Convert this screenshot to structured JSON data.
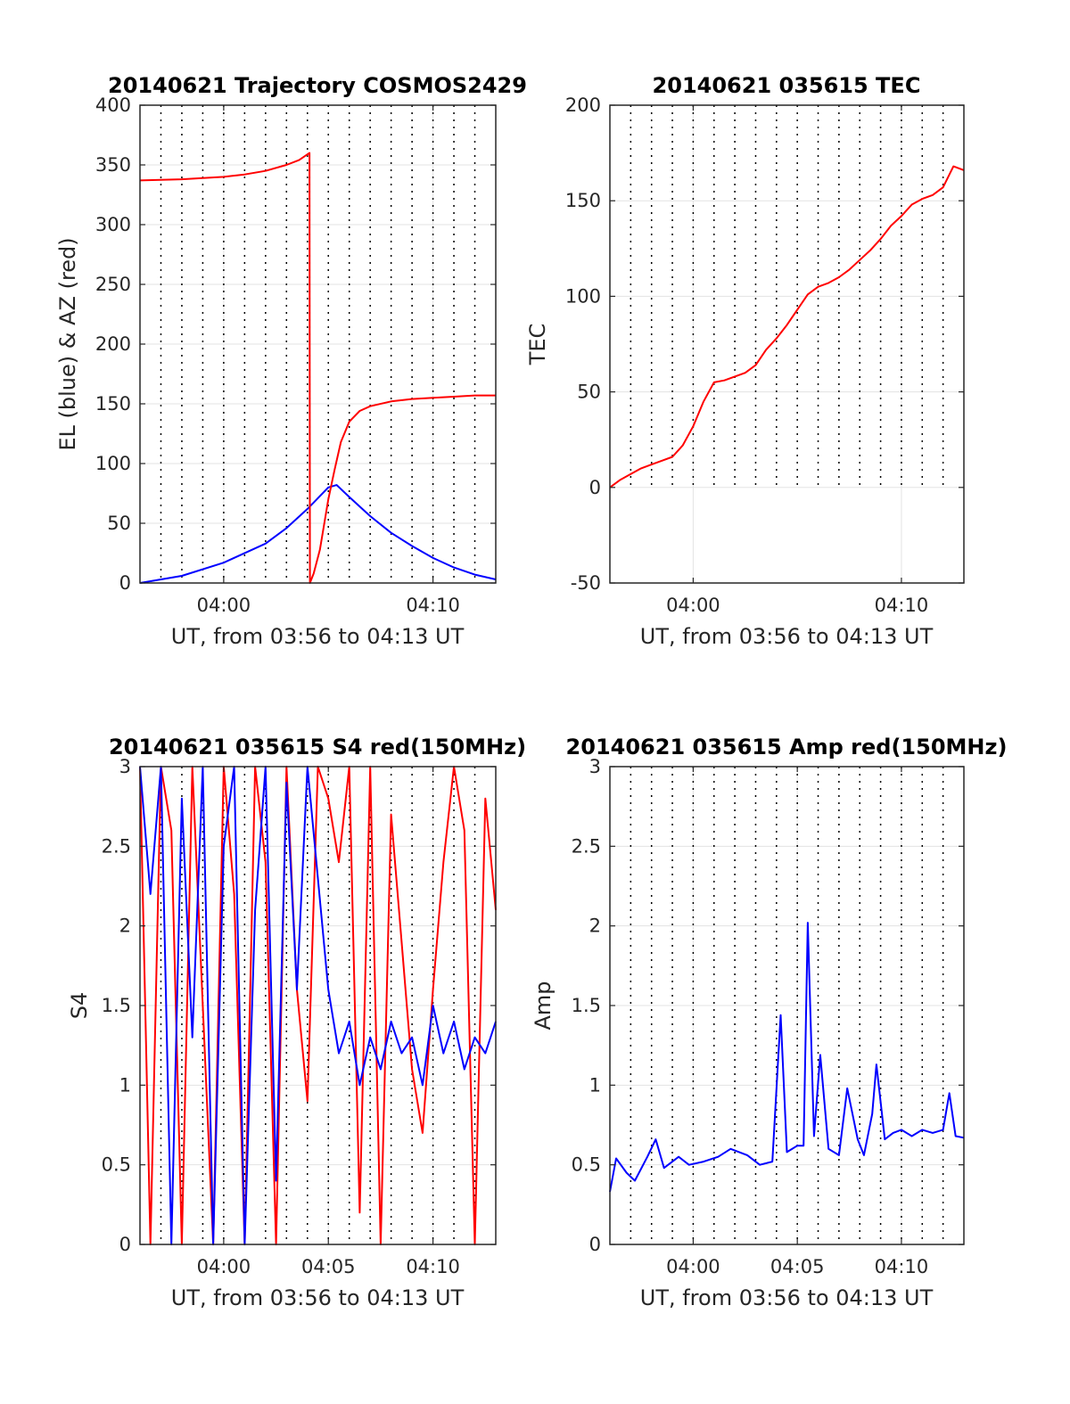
{
  "chart_data": [
    {
      "type": "line",
      "title": "20140621 Trajectory COSMOS2429",
      "xlabel": "UT, from 03:56 to 04:13 UT",
      "ylabel": "EL (blue) & AZ (red)",
      "xlim_minutes": [
        0,
        17
      ],
      "xticks": [
        {
          "label": "04:00",
          "minute": 4
        },
        {
          "label": "04:10",
          "minute": 14
        }
      ],
      "ylim": [
        0,
        400
      ],
      "yticks": [
        0,
        50,
        100,
        150,
        200,
        250,
        300,
        350,
        400
      ],
      "grid": "x dotted every 1 min; y solid light",
      "series": [
        {
          "color": "#0000ff",
          "points": [
            [
              0,
              0
            ],
            [
              2,
              6
            ],
            [
              4,
              17
            ],
            [
              6,
              33
            ],
            [
              7,
              46
            ],
            [
              8,
              62
            ],
            [
              9,
              80
            ],
            [
              9.4,
              82
            ],
            [
              10,
              72
            ],
            [
              11,
              56
            ],
            [
              12,
              42
            ],
            [
              13,
              31
            ],
            [
              14,
              21
            ],
            [
              15,
              13
            ],
            [
              16,
              7
            ],
            [
              17,
              3
            ]
          ]
        },
        {
          "color": "#ff0000",
          "points": [
            [
              0,
              337
            ],
            [
              2,
              338
            ],
            [
              4,
              340
            ],
            [
              5,
              342
            ],
            [
              6,
              345
            ],
            [
              7,
              350
            ],
            [
              7.6,
              354
            ],
            [
              8.1,
              360
            ],
            [
              8.12,
              0
            ],
            [
              8.3,
              8
            ],
            [
              8.6,
              28
            ],
            [
              9,
              70
            ],
            [
              9.3,
              95
            ],
            [
              9.6,
              118
            ],
            [
              10,
              135
            ],
            [
              10.5,
              144
            ],
            [
              11,
              148
            ],
            [
              12,
              152
            ],
            [
              13,
              154
            ],
            [
              14,
              155
            ],
            [
              15,
              156
            ],
            [
              16,
              157
            ],
            [
              17,
              157
            ]
          ]
        }
      ]
    },
    {
      "type": "line",
      "title": "20140621 035615 TEC",
      "xlabel": "UT, from 03:56 to 04:13 UT",
      "ylabel": "TEC",
      "xlim_minutes": [
        0,
        17
      ],
      "xticks": [
        {
          "label": "04:00",
          "minute": 4
        },
        {
          "label": "04:10",
          "minute": 14
        }
      ],
      "ylim": [
        -50,
        200
      ],
      "yticks": [
        -50,
        0,
        50,
        100,
        150,
        200
      ],
      "grid": "x dotted every 1 min over data; y solid light",
      "series": [
        {
          "color": "#ff0000",
          "points": [
            [
              0,
              0
            ],
            [
              0.5,
              4
            ],
            [
              1,
              7
            ],
            [
              1.5,
              10
            ],
            [
              2,
              12
            ],
            [
              2.5,
              14
            ],
            [
              3,
              16
            ],
            [
              3.5,
              22
            ],
            [
              4,
              32
            ],
            [
              4.5,
              45
            ],
            [
              5,
              55
            ],
            [
              5.5,
              56
            ],
            [
              6,
              58
            ],
            [
              6.5,
              60
            ],
            [
              7,
              64
            ],
            [
              7.5,
              72
            ],
            [
              8,
              78
            ],
            [
              8.5,
              85
            ],
            [
              9,
              93
            ],
            [
              9.5,
              101
            ],
            [
              10,
              105
            ],
            [
              10.5,
              107
            ],
            [
              11,
              110
            ],
            [
              11.5,
              114
            ],
            [
              12,
              119
            ],
            [
              12.5,
              124
            ],
            [
              13,
              130
            ],
            [
              13.5,
              137
            ],
            [
              14,
              142
            ],
            [
              14.5,
              148
            ],
            [
              15,
              151
            ],
            [
              15.5,
              153
            ],
            [
              16,
              157
            ],
            [
              16.5,
              168
            ],
            [
              17,
              166
            ]
          ]
        }
      ]
    },
    {
      "type": "line",
      "title": "20140621 035615 S4 red(150MHz)",
      "xlabel": "UT, from 03:56 to 04:13 UT",
      "ylabel": "S4",
      "xlim_minutes": [
        0,
        17
      ],
      "xticks": [
        {
          "label": "04:00",
          "minute": 4
        },
        {
          "label": "04:05",
          "minute": 9
        },
        {
          "label": "04:10",
          "minute": 14
        }
      ],
      "ylim": [
        0,
        3
      ],
      "yticks": [
        "0",
        "0.5",
        "1",
        "1.5",
        "2",
        "2.5",
        "3"
      ],
      "grid": "x dotted every 1 min; y solid light",
      "series": [
        {
          "color": "#ff0000",
          "points": [
            [
              0,
              3
            ],
            [
              0.5,
              0
            ],
            [
              1,
              3
            ],
            [
              1.5,
              2.6
            ],
            [
              2,
              0
            ],
            [
              2.5,
              3
            ],
            [
              3,
              1.5
            ],
            [
              3.5,
              0
            ],
            [
              4,
              3
            ],
            [
              4.5,
              2.2
            ],
            [
              5,
              0
            ],
            [
              5.5,
              3
            ],
            [
              6,
              2.4
            ],
            [
              6.5,
              0
            ],
            [
              7,
              3
            ],
            [
              7.5,
              1.6
            ],
            [
              8,
              0.9
            ],
            [
              8.5,
              3
            ],
            [
              9,
              2.8
            ],
            [
              9.5,
              2.4
            ],
            [
              10,
              3
            ],
            [
              10.5,
              0.2
            ],
            [
              11,
              3
            ],
            [
              11.5,
              0
            ],
            [
              12,
              2.7
            ],
            [
              12.5,
              1.9
            ],
            [
              13,
              1.1
            ],
            [
              13.5,
              0.7
            ],
            [
              14,
              1.6
            ],
            [
              14.5,
              2.4
            ],
            [
              15,
              3
            ],
            [
              15.5,
              2.6
            ],
            [
              16,
              0
            ],
            [
              16.5,
              2.8
            ],
            [
              17,
              2.1
            ]
          ]
        },
        {
          "color": "#0000ff",
          "points": [
            [
              0,
              3
            ],
            [
              0.5,
              2.2
            ],
            [
              1,
              3
            ],
            [
              1.5,
              0
            ],
            [
              2,
              2.8
            ],
            [
              2.5,
              1.3
            ],
            [
              3,
              3
            ],
            [
              3.5,
              0
            ],
            [
              4,
              2.5
            ],
            [
              4.5,
              3
            ],
            [
              5,
              0
            ],
            [
              5.5,
              2.1
            ],
            [
              6,
              3
            ],
            [
              6.5,
              0.4
            ],
            [
              7,
              2.9
            ],
            [
              7.5,
              1.6
            ],
            [
              8,
              3
            ],
            [
              8.5,
              2.3
            ],
            [
              9,
              1.6
            ],
            [
              9.5,
              1.2
            ],
            [
              10,
              1.4
            ],
            [
              10.5,
              1
            ],
            [
              11,
              1.3
            ],
            [
              11.5,
              1.1
            ],
            [
              12,
              1.4
            ],
            [
              12.5,
              1.2
            ],
            [
              13,
              1.3
            ],
            [
              13.5,
              1
            ],
            [
              14,
              1.5
            ],
            [
              14.5,
              1.2
            ],
            [
              15,
              1.4
            ],
            [
              15.5,
              1.1
            ],
            [
              16,
              1.3
            ],
            [
              16.5,
              1.2
            ],
            [
              17,
              1.4
            ]
          ]
        }
      ]
    },
    {
      "type": "line",
      "title": "20140621 035615 Amp red(150MHz)",
      "xlabel": "UT, from 03:56 to 04:13 UT",
      "ylabel": "Amp",
      "xlim_minutes": [
        0,
        17
      ],
      "xticks": [
        {
          "label": "04:00",
          "minute": 4
        },
        {
          "label": "04:05",
          "minute": 9
        },
        {
          "label": "04:10",
          "minute": 14
        }
      ],
      "ylim": [
        0,
        3
      ],
      "yticks": [
        "0",
        "0.5",
        "1",
        "1.5",
        "2",
        "2.5",
        "3"
      ],
      "grid": "x dotted every 1 min; y solid light",
      "series": [
        {
          "color": "#0000ff",
          "points": [
            [
              0,
              0.33
            ],
            [
              0.3,
              0.54
            ],
            [
              0.8,
              0.45
            ],
            [
              1.2,
              0.4
            ],
            [
              1.8,
              0.55
            ],
            [
              2.2,
              0.66
            ],
            [
              2.6,
              0.48
            ],
            [
              3.3,
              0.55
            ],
            [
              3.8,
              0.5
            ],
            [
              4.5,
              0.52
            ],
            [
              5.2,
              0.55
            ],
            [
              5.8,
              0.6
            ],
            [
              6.6,
              0.56
            ],
            [
              7.2,
              0.5
            ],
            [
              7.8,
              0.52
            ],
            [
              8.2,
              1.44
            ],
            [
              8.5,
              0.58
            ],
            [
              9,
              0.62
            ],
            [
              9.3,
              0.62
            ],
            [
              9.5,
              2.02
            ],
            [
              9.8,
              0.68
            ],
            [
              10.1,
              1.19
            ],
            [
              10.5,
              0.6
            ],
            [
              11,
              0.56
            ],
            [
              11.4,
              0.98
            ],
            [
              11.9,
              0.66
            ],
            [
              12.2,
              0.56
            ],
            [
              12.6,
              0.82
            ],
            [
              12.8,
              1.13
            ],
            [
              13.2,
              0.66
            ],
            [
              13.6,
              0.7
            ],
            [
              14,
              0.72
            ],
            [
              14.5,
              0.68
            ],
            [
              15,
              0.72
            ],
            [
              15.5,
              0.7
            ],
            [
              16,
              0.72
            ],
            [
              16.3,
              0.95
            ],
            [
              16.6,
              0.68
            ],
            [
              17,
              0.67
            ]
          ]
        }
      ]
    }
  ]
}
